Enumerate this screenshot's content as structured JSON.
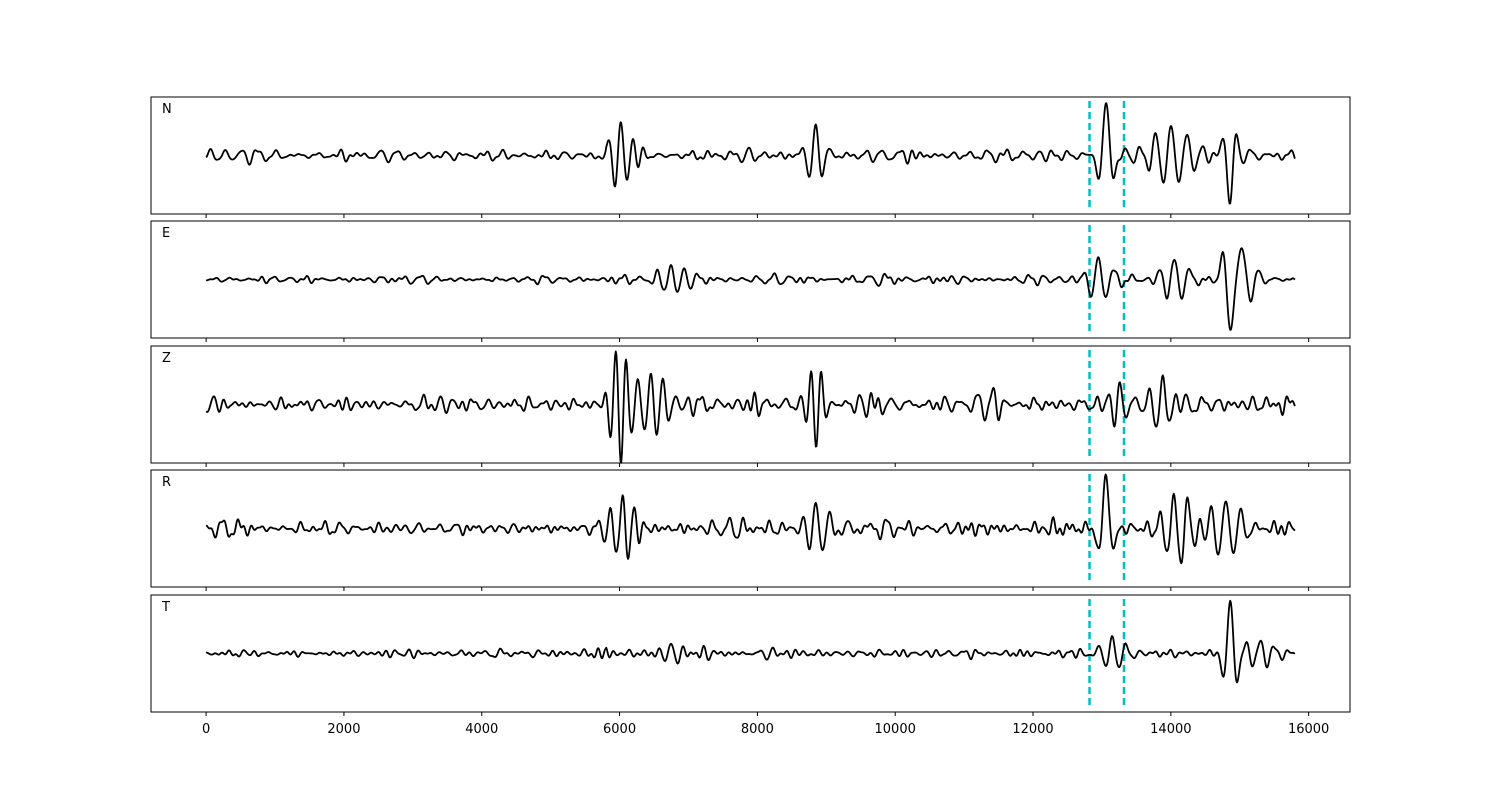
{
  "chart_data": {
    "type": "line",
    "layout": "stacked-subplots",
    "shared_x": true,
    "xlim": [
      -800,
      16600
    ],
    "xticks": [
      0,
      2000,
      4000,
      6000,
      8000,
      10000,
      12000,
      14000,
      16000
    ],
    "xtick_labels": [
      "0",
      "2000",
      "4000",
      "6000",
      "8000",
      "10000",
      "12000",
      "14000",
      "16000"
    ],
    "ylim": [
      -1.1,
      1.1
    ],
    "x_range": [
      0,
      15800
    ],
    "markers": {
      "x": [
        12820,
        13320
      ],
      "style": "dashed",
      "color": "#00bfbf"
    },
    "line_color": "#000000",
    "panels": [
      {
        "label": "N",
        "noise_level": 0.17,
        "events": [
          {
            "x": 6020,
            "amp": 0.58,
            "width": 150,
            "period": 180
          },
          {
            "x": 8850,
            "amp": 0.45,
            "width": 120,
            "period": 200
          },
          {
            "x": 13060,
            "amp": 0.98,
            "width": 90,
            "period": 260
          },
          {
            "x": 14000,
            "amp": 0.55,
            "width": 300,
            "period": 230
          },
          {
            "x": 14860,
            "amp": -0.92,
            "width": 80,
            "period": 240
          }
        ]
      },
      {
        "label": "E",
        "noise_level": 0.1,
        "events": [
          {
            "x": 6750,
            "amp": 0.3,
            "width": 200,
            "period": 200
          },
          {
            "x": 12950,
            "amp": 0.42,
            "width": 150,
            "period": 220
          },
          {
            "x": 14050,
            "amp": 0.38,
            "width": 200,
            "period": 220
          },
          {
            "x": 14860,
            "amp": -1.0,
            "width": 100,
            "period": 260
          },
          {
            "x": 15050,
            "amp": 0.55,
            "width": 140,
            "period": 230
          }
        ]
      },
      {
        "label": "Z",
        "noise_level": 0.2,
        "events": [
          {
            "x": 6020,
            "amp": -1.0,
            "width": 130,
            "period": 150
          },
          {
            "x": 6450,
            "amp": 0.55,
            "width": 250,
            "period": 180
          },
          {
            "x": 8850,
            "amp": -0.7,
            "width": 120,
            "period": 150
          },
          {
            "x": 13180,
            "amp": -0.4,
            "width": 150,
            "period": 180
          },
          {
            "x": 13880,
            "amp": 0.45,
            "width": 150,
            "period": 200
          }
        ]
      },
      {
        "label": "R",
        "noise_level": 0.2,
        "events": [
          {
            "x": 6040,
            "amp": 0.62,
            "width": 180,
            "period": 170
          },
          {
            "x": 8850,
            "amp": 0.5,
            "width": 150,
            "period": 200
          },
          {
            "x": 13060,
            "amp": 1.0,
            "width": 90,
            "period": 260
          },
          {
            "x": 14150,
            "amp": -0.6,
            "width": 200,
            "period": 200
          },
          {
            "x": 14800,
            "amp": 0.55,
            "width": 250,
            "period": 220
          }
        ]
      },
      {
        "label": "T",
        "noise_level": 0.1,
        "events": [
          {
            "x": 6750,
            "amp": 0.2,
            "width": 150,
            "period": 200
          },
          {
            "x": 13150,
            "amp": 0.25,
            "width": 200,
            "period": 200
          },
          {
            "x": 14860,
            "amp": 1.0,
            "width": 90,
            "period": 230
          },
          {
            "x": 15300,
            "amp": 0.25,
            "width": 200,
            "period": 210
          }
        ]
      }
    ]
  }
}
